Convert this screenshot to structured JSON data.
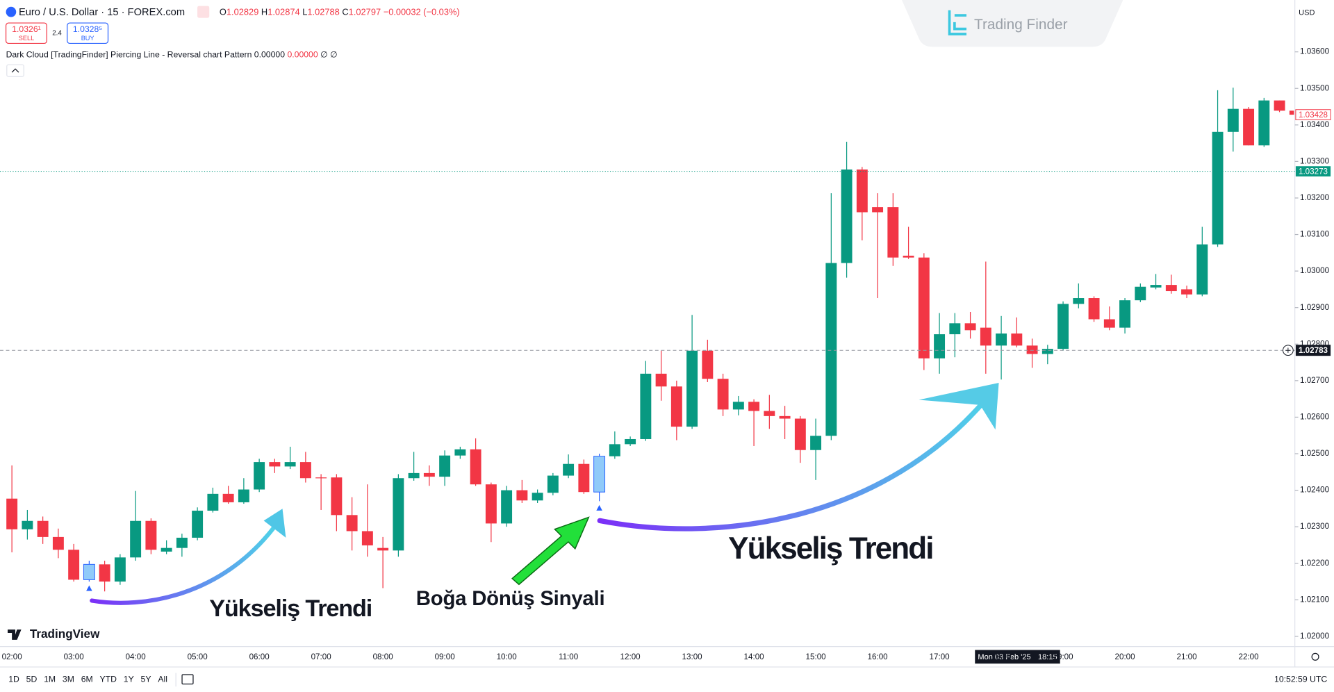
{
  "header": {
    "symbol": "Euro / U.S. Dollar · 15 · FOREX.com",
    "ohlc": [
      {
        "k": "O",
        "v": "1.02829"
      },
      {
        "k": "H",
        "v": "1.02874"
      },
      {
        "k": "L",
        "v": "1.02788"
      },
      {
        "k": "C",
        "v": "1.02797"
      }
    ],
    "change": "−0.00032 (−0.03%)",
    "sell": {
      "price": "1.0326¹",
      "label": "SELL"
    },
    "spread": "2.4",
    "buy": {
      "price": "1.0328⁵",
      "label": "BUY"
    },
    "indicator": {
      "name": "Dark Cloud [TradingFinder] Piercing Line - Reversal chart Pattern",
      "values": [
        "0.00000",
        "0.00000",
        "∅",
        "∅"
      ]
    },
    "currency": "USD"
  },
  "brand": {
    "watermark": "Trading Finder",
    "logo": "TradingView"
  },
  "annotations": [
    "Yükseliş Trendi",
    "Boğa Dönüş Sinyali",
    "Yükseliş Trendi"
  ],
  "toolbar": {
    "ranges": [
      "1D",
      "5D",
      "1M",
      "3M",
      "6M",
      "YTD",
      "1Y",
      "5Y",
      "All"
    ],
    "clock": "10:52:59 UTC"
  },
  "crosshair": {
    "date": "Mon 03 Feb '25",
    "time": "18:15",
    "price": 1.02783
  },
  "chart_data": {
    "type": "candlestick",
    "up_color": "#089981",
    "down_color": "#f23645",
    "signal_color": "#90caf9",
    "grid": false,
    "ylim": [
      1.01972,
      1.03742
    ],
    "yticks": [
      {
        "value": 1.036,
        "label": "1.03600"
      },
      {
        "value": 1.035,
        "label": "1.03500"
      },
      {
        "value": 1.034,
        "label": "1.03400"
      },
      {
        "value": 1.033,
        "label": "1.03300"
      },
      {
        "value": 1.032,
        "label": "1.03200"
      },
      {
        "value": 1.031,
        "label": "1.03100"
      },
      {
        "value": 1.03,
        "label": "1.03000"
      },
      {
        "value": 1.029,
        "label": "1.02900"
      },
      {
        "value": 1.028,
        "label": "1.02800"
      },
      {
        "value": 1.027,
        "label": "1.02700"
      },
      {
        "value": 1.026,
        "label": "1.02600"
      },
      {
        "value": 1.025,
        "label": "1.02500"
      },
      {
        "value": 1.024,
        "label": "1.02400"
      },
      {
        "value": 1.023,
        "label": "1.02300"
      },
      {
        "value": 1.022,
        "label": "1.02200"
      },
      {
        "value": 1.021,
        "label": "1.02100"
      },
      {
        "value": 1.02,
        "label": "1.02000"
      }
    ],
    "xticks": [
      "02:00",
      "03:00",
      "04:00",
      "05:00",
      "06:00",
      "07:00",
      "08:00",
      "09:00",
      "10:00",
      "11:00",
      "12:00",
      "13:00",
      "14:00",
      "15:00",
      "16:00",
      "17:00",
      "18:00",
      "19:00",
      "20:00",
      "21:00",
      "22:00"
    ],
    "open": [
      1.02377,
      1.02293,
      1.02316,
      1.02272,
      1.02237,
      1.02155,
      1.02197,
      1.0215,
      1.02216,
      1.02316,
      1.02232,
      1.02242,
      1.0227,
      1.02344,
      1.0239,
      1.02367,
      1.02402,
      1.02477,
      1.02465,
      1.02477,
      1.02435,
      1.02435,
      1.02332,
      1.02288,
      1.02242,
      1.02235,
      1.02433,
      1.02447,
      1.02437,
      1.02495,
      1.02512,
      1.02416,
      1.02309,
      1.024,
      1.02372,
      1.02393,
      1.0244,
      1.02472,
      1.02395,
      1.02493,
      1.02526,
      1.0254,
      1.02719,
      1.02684,
      1.02574,
      1.02782,
      1.02705,
      1.02621,
      1.02642,
      1.02617,
      1.02603,
      1.02596,
      1.0251,
      1.02549,
      1.03022,
      1.03278,
      1.03175,
      1.03175,
      1.03042,
      1.03037,
      1.02761,
      1.02827,
      1.02857,
      1.02845,
      1.02796,
      1.02829,
      1.02796,
      1.02773,
      1.02787,
      1.0291,
      1.02926,
      1.02868,
      1.02845,
      1.0292,
      1.02955,
      1.02962,
      1.0295,
      1.02936,
      1.03073,
      1.03381,
      1.03444,
      1.03344,
      1.03467,
      1.03439
    ],
    "high": [
      1.02468,
      1.02346,
      1.02328,
      1.02295,
      1.02253,
      1.02207,
      1.02207,
      1.02225,
      1.02398,
      1.02323,
      1.02263,
      1.02281,
      1.02353,
      1.02407,
      1.02412,
      1.02433,
      1.02486,
      1.02486,
      1.02519,
      1.02505,
      1.02444,
      1.02444,
      1.02381,
      1.02416,
      1.02272,
      1.02444,
      1.02505,
      1.02468,
      1.02509,
      1.02519,
      1.02542,
      1.02421,
      1.02412,
      1.02428,
      1.02402,
      1.02447,
      1.02498,
      1.02484,
      1.025,
      1.02561,
      1.02547,
      1.02754,
      1.02782,
      1.027,
      1.0288,
      1.02812,
      1.02719,
      1.02658,
      1.02649,
      1.02661,
      1.02631,
      1.02603,
      1.02596,
      1.03213,
      1.03354,
      1.03285,
      1.03213,
      1.03213,
      1.03121,
      1.03049,
      1.02885,
      1.02885,
      1.02888,
      1.03026,
      1.02877,
      1.02873,
      1.02815,
      1.02798,
      1.02917,
      1.02966,
      1.02931,
      1.02903,
      1.02926,
      1.02966,
      1.02992,
      1.0299,
      1.0296,
      1.03121,
      1.03495,
      1.03502,
      1.03449,
      1.03474,
      1.03467,
      1.03439
    ],
    "low": [
      1.0223,
      1.02265,
      1.02253,
      1.02214,
      1.0215,
      1.0215,
      1.02123,
      1.02141,
      1.02207,
      1.02225,
      1.02225,
      1.02218,
      1.02263,
      1.02339,
      1.02363,
      1.02363,
      1.02395,
      1.02447,
      1.02458,
      1.02421,
      1.02346,
      1.02288,
      1.02235,
      1.02218,
      1.02132,
      1.02218,
      1.02426,
      1.02412,
      1.02412,
      1.02486,
      1.02412,
      1.02258,
      1.023,
      1.02365,
      1.02365,
      1.02386,
      1.02433,
      1.0239,
      1.0237,
      1.02486,
      1.02521,
      1.02535,
      1.02645,
      1.02537,
      1.02568,
      1.02696,
      1.02603,
      1.02605,
      1.02521,
      1.02568,
      1.0254,
      1.02475,
      1.02428,
      1.02537,
      1.02982,
      1.03084,
      1.02926,
      1.03014,
      1.03033,
      1.02729,
      1.02719,
      1.02764,
      1.02815,
      1.02719,
      1.02703,
      1.02791,
      1.02735,
      1.02745,
      1.02782,
      1.02898,
      1.02861,
      1.02838,
      1.02829,
      1.02915,
      1.0295,
      1.02938,
      1.02926,
      1.02931,
      1.03066,
      1.03327,
      1.03344,
      1.0334,
      1.03435,
      1.03428
    ],
    "close": [
      1.02293,
      1.02316,
      1.02272,
      1.02237,
      1.02155,
      1.02197,
      1.0215,
      1.02216,
      1.02316,
      1.02237,
      1.02242,
      1.0227,
      1.02344,
      1.0239,
      1.02367,
      1.02402,
      1.02477,
      1.02465,
      1.02477,
      1.02433,
      1.02433,
      1.02332,
      1.02288,
      1.02249,
      1.02235,
      1.02433,
      1.02447,
      1.02437,
      1.02495,
      1.02512,
      1.02416,
      1.02309,
      1.024,
      1.02372,
      1.02393,
      1.0244,
      1.02472,
      1.02395,
      1.02493,
      1.02526,
      1.0254,
      1.02719,
      1.02684,
      1.02574,
      1.02782,
      1.02705,
      1.02621,
      1.02642,
      1.02617,
      1.02603,
      1.02596,
      1.0251,
      1.02549,
      1.03022,
      1.03278,
      1.03161,
      1.03161,
      1.03037,
      1.03037,
      1.02761,
      1.02827,
      1.02857,
      1.02838,
      1.02796,
      1.02829,
      1.02796,
      1.02773,
      1.02787,
      1.0291,
      1.02926,
      1.02868,
      1.02845,
      1.0292,
      1.02957,
      1.02962,
      1.02945,
      1.02936,
      1.03073,
      1.03381,
      1.03444,
      1.03344,
      1.03467,
      1.03439,
      1.03428
    ],
    "signals": [
      5,
      38
    ],
    "last_price": 1.03428,
    "prev_close": 1.03273
  }
}
